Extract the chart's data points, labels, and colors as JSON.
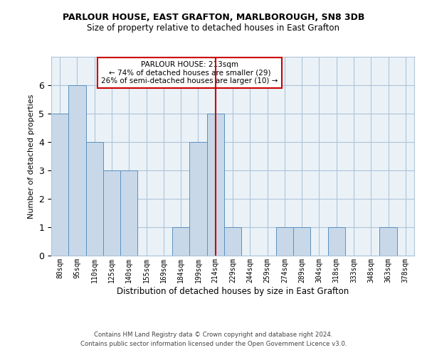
{
  "title1": "PARLOUR HOUSE, EAST GRAFTON, MARLBOROUGH, SN8 3DB",
  "title2": "Size of property relative to detached houses in East Grafton",
  "xlabel": "Distribution of detached houses by size in East Grafton",
  "ylabel": "Number of detached properties",
  "categories": [
    "80sqm",
    "95sqm",
    "110sqm",
    "125sqm",
    "140sqm",
    "155sqm",
    "169sqm",
    "184sqm",
    "199sqm",
    "214sqm",
    "229sqm",
    "244sqm",
    "259sqm",
    "274sqm",
    "289sqm",
    "304sqm",
    "318sqm",
    "333sqm",
    "348sqm",
    "363sqm",
    "378sqm"
  ],
  "values": [
    5,
    6,
    4,
    3,
    3,
    0,
    0,
    1,
    4,
    5,
    1,
    0,
    0,
    1,
    1,
    0,
    1,
    0,
    0,
    1,
    0
  ],
  "bar_color": "#c8d8e8",
  "bar_edge_color": "#5b90c0",
  "highlight_index": 9,
  "highlight_color": "#cc0000",
  "annotation_text": "PARLOUR HOUSE: 213sqm\n← 74% of detached houses are smaller (29)\n26% of semi-detached houses are larger (10) →",
  "annotation_box_color": "#cc0000",
  "ylim": [
    0,
    7
  ],
  "yticks": [
    0,
    1,
    2,
    3,
    4,
    5,
    6
  ],
  "footer1": "Contains HM Land Registry data © Crown copyright and database right 2024.",
  "footer2": "Contains public sector information licensed under the Open Government Licence v3.0.",
  "grid_color": "#afc4d8",
  "bg_color": "#eaf2f8",
  "fig_width": 6.0,
  "fig_height": 5.0,
  "dpi": 100
}
